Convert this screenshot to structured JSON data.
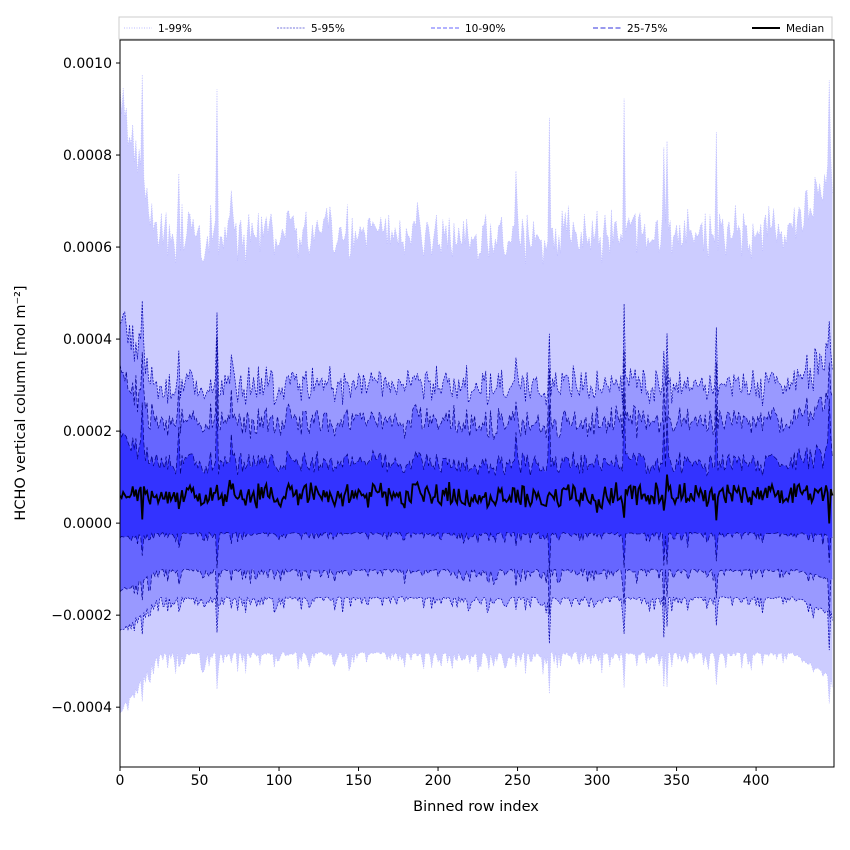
{
  "chart_data": {
    "type": "area",
    "xlabel": "Binned row index",
    "ylabel": "HCHO vertical column [mol m⁻²]",
    "xlim": [
      0,
      449
    ],
    "ylim": [
      -0.00053,
      0.00105
    ],
    "x_ticks": [
      0,
      50,
      100,
      150,
      200,
      250,
      300,
      350,
      400
    ],
    "x_tick_labels": [
      "0",
      "50",
      "100",
      "150",
      "200",
      "250",
      "300",
      "350",
      "400"
    ],
    "y_ticks": [
      -0.0004,
      -0.0002,
      0.0,
      0.0002,
      0.0004,
      0.0006,
      0.0008,
      0.001
    ],
    "y_tick_labels": [
      "−0.0004",
      "−0.0002",
      "0.0000",
      "0.0002",
      "0.0004",
      "0.0006",
      "0.0008",
      "0.0010"
    ],
    "grid": false,
    "legend_position": "top",
    "n_points": 449,
    "series": [
      {
        "name": "1-99%",
        "fill": "#ccccff",
        "line": "#bbbbff",
        "dash": "1,1.5",
        "lower_mean": -0.00028,
        "upper_mean": 0.00063
      },
      {
        "name": "5-95%",
        "fill": "#9999ff",
        "line": "#0000aa",
        "dash": "2,1.2",
        "lower_mean": -0.00016,
        "upper_mean": 0.0003
      },
      {
        "name": "10-90%",
        "fill": "#6666ff",
        "line": "#00008b",
        "dash": "4,2",
        "lower_mean": -0.0001,
        "upper_mean": 0.00022
      },
      {
        "name": "25-75%",
        "fill": "#3333ff",
        "line": "#000080",
        "dash": "5,2.5",
        "lower_mean": -2e-05,
        "upper_mean": 0.00013
      },
      {
        "name": "Median",
        "fill": "",
        "line": "#000000",
        "dash": "",
        "mean": 6e-05
      }
    ],
    "legend": [
      {
        "label": "1-99%",
        "color": "#bbbbff",
        "dash": "1,1.5",
        "width": 1
      },
      {
        "label": "5-95%",
        "color": "#7777dd",
        "dash": "2,1.2",
        "width": 1
      },
      {
        "label": "10-90%",
        "color": "#6666ff",
        "dash": "4,2",
        "width": 1
      },
      {
        "label": "25-75%",
        "color": "#3333dd",
        "dash": "5,2.5",
        "width": 1
      },
      {
        "label": "Median",
        "color": "#000000",
        "dash": "",
        "width": 2
      }
    ]
  }
}
